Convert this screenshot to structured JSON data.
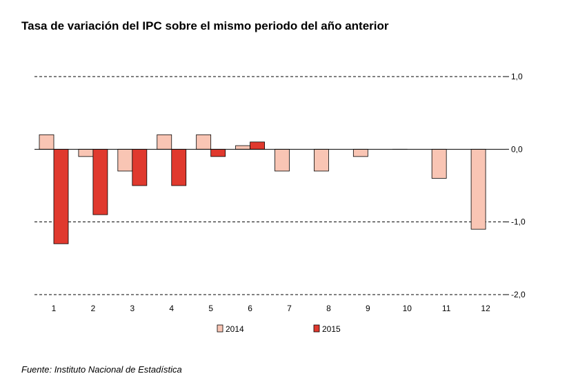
{
  "title": "Tasa de variación del IPC sobre el mismo periodo del año anterior",
  "source": "Fuente: Instituto Nacional de Estadística",
  "colors": {
    "s2014": "#f9c5b4",
    "s2015": "#e0392e"
  },
  "chart_data": {
    "type": "bar",
    "categories": [
      "1",
      "2",
      "3",
      "4",
      "5",
      "6",
      "7",
      "8",
      "9",
      "10",
      "11",
      "12"
    ],
    "series": [
      {
        "name": "2014",
        "values": [
          0.2,
          -0.1,
          -0.3,
          0.2,
          0.2,
          0.05,
          -0.3,
          -0.3,
          -0.1,
          0.0,
          -0.4,
          -1.1
        ]
      },
      {
        "name": "2015",
        "values": [
          -1.3,
          -0.9,
          -0.5,
          -0.5,
          -0.1,
          0.1,
          null,
          null,
          null,
          null,
          null,
          null
        ]
      }
    ],
    "yticks": [
      "1,0",
      "0,0",
      "-1,0",
      "-2,0"
    ],
    "ylim": [
      -2,
      1
    ],
    "grid": true,
    "legend_position": "bottom"
  }
}
